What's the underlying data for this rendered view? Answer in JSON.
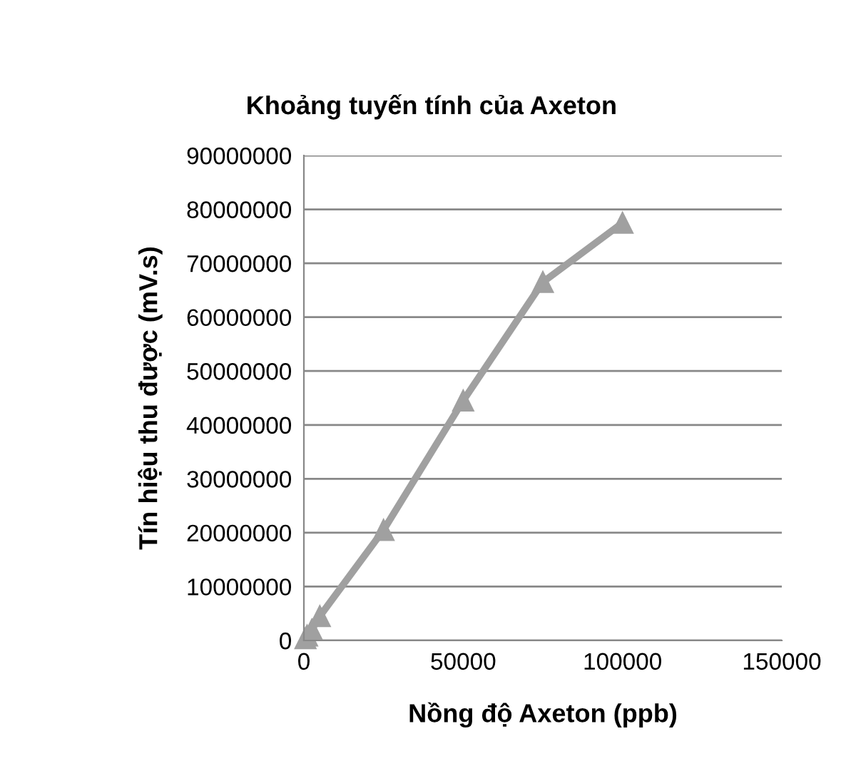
{
  "chart_data": {
    "type": "line",
    "title": "Khoảng tuyến tính của Axeton",
    "xlabel": "Nồng độ Axeton (ppb)",
    "ylabel": "Tín hiệu thu được (mV.s)",
    "x": [
      500,
      1000,
      2500,
      5000,
      25000,
      50000,
      75000,
      100000
    ],
    "series": [
      {
        "color": "#a0a0a0",
        "values": [
          400000,
          900000,
          2000000,
          4500000,
          20500000,
          44500000,
          66500000,
          77500000
        ]
      }
    ],
    "marker": "triangle",
    "line_style": "solid",
    "grid": "y",
    "xlim": [
      0,
      150000
    ],
    "xticks": [
      0,
      50000,
      100000,
      150000
    ],
    "ylim": [
      0,
      90000000
    ],
    "yticks": [
      0,
      10000000,
      20000000,
      30000000,
      40000000,
      50000000,
      60000000,
      70000000,
      80000000,
      90000000
    ]
  }
}
